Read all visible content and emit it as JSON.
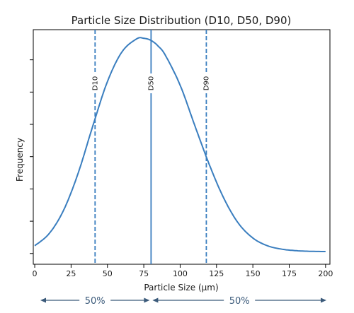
{
  "chart_data": {
    "type": "line",
    "title": "Particle Size Distribution (D10, D50, D90)",
    "xlabel": "Particle Size (µm)",
    "ylabel": "Frequency",
    "xlim": [
      -1,
      203
    ],
    "ylim": [
      -0.05,
      1.04
    ],
    "xticks": [
      0,
      25,
      50,
      75,
      100,
      125,
      150,
      175,
      200
    ],
    "yticks": [
      0,
      0.15,
      0.3,
      0.45,
      0.6,
      0.75,
      0.9
    ],
    "grid": false,
    "series": [
      {
        "x": [
          0,
          10,
          20,
          30,
          40,
          50,
          60,
          70,
          75,
          80,
          85,
          90,
          100,
          110,
          120,
          130,
          140,
          150,
          160,
          170,
          180,
          190,
          200
        ],
        "values": [
          0.036,
          0.093,
          0.203,
          0.376,
          0.594,
          0.799,
          0.937,
          0.997,
          1.0,
          0.99,
          0.963,
          0.919,
          0.782,
          0.596,
          0.414,
          0.257,
          0.141,
          0.072,
          0.036,
          0.02,
          0.013,
          0.01,
          0.009
        ],
        "color": "#3a7ebf"
      }
    ],
    "markers": [
      {
        "label": "D10",
        "x": 41.5,
        "style": "dashed"
      },
      {
        "label": "D50",
        "x": 80,
        "style": "solid"
      },
      {
        "label": "D90",
        "x": 118,
        "style": "dashed"
      }
    ],
    "split_labels": [
      "50%",
      "50%"
    ],
    "colors": {
      "line": "#3a7ebf",
      "arrow": "#3b5a7a"
    }
  }
}
